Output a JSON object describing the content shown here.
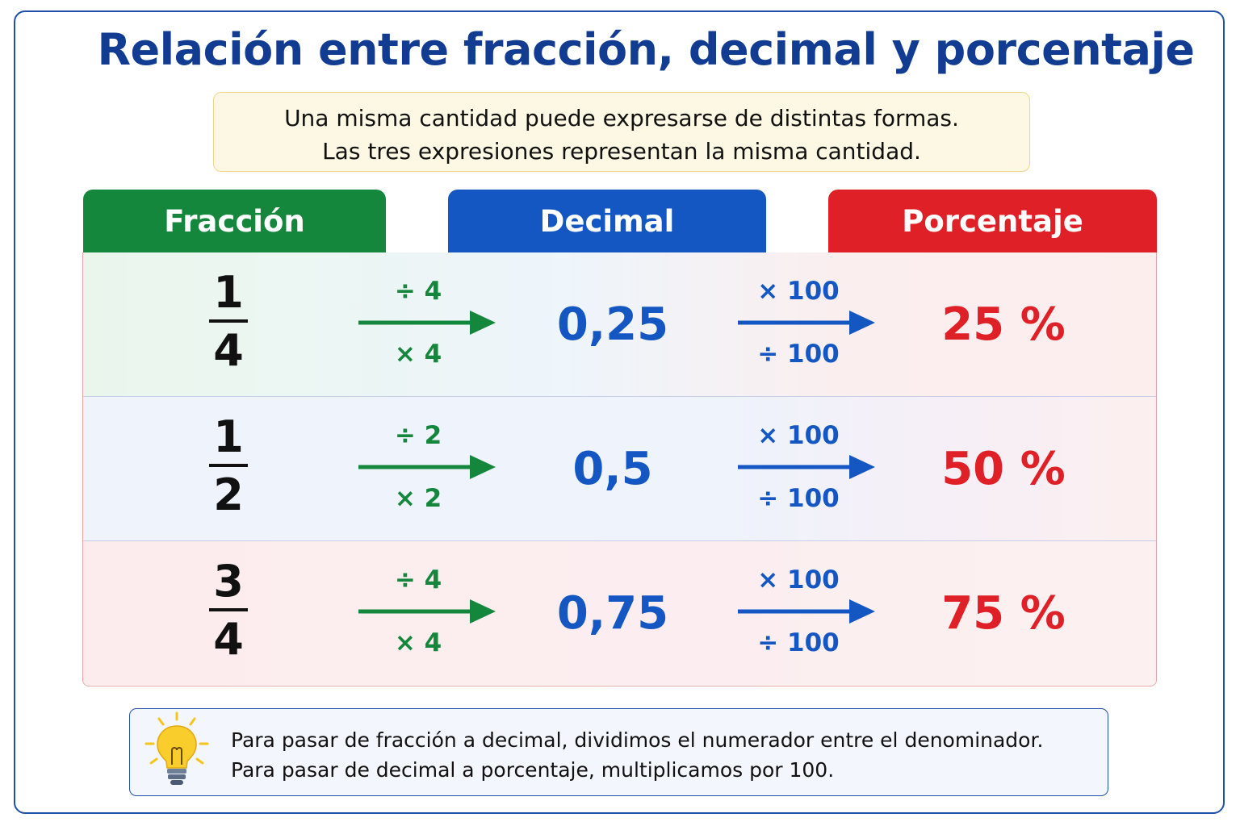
{
  "title": "Relación entre fracción, decimal y porcentaje",
  "intro": {
    "line1": "Una misma cantidad puede expresarse de distintas formas.",
    "line2": "Las tres expresiones representan la misma cantidad."
  },
  "headers": {
    "fraction": "Fracción",
    "decimal": "Decimal",
    "percent": "Porcentaje"
  },
  "rows": [
    {
      "numerator": "1",
      "denominator": "4",
      "op1_top": "÷ 4",
      "op1_bottom": "× 4",
      "decimal": "0,25",
      "op2_top": "× 100",
      "op2_bottom": "÷ 100",
      "percent": "25 %"
    },
    {
      "numerator": "1",
      "denominator": "2",
      "op1_top": "÷ 2",
      "op1_bottom": "× 2",
      "decimal": "0,5",
      "op2_top": "× 100",
      "op2_bottom": "÷ 100",
      "percent": "50 %"
    },
    {
      "numerator": "3",
      "denominator": "4",
      "op1_top": "÷ 4",
      "op1_bottom": "× 4",
      "decimal": "0,75",
      "op2_top": "× 100",
      "op2_bottom": "÷ 100",
      "percent": "75 %"
    }
  ],
  "tip": {
    "icon": "lightbulb-icon",
    "line1": "Para pasar de fracción a decimal, dividimos el numerador entre el denominador.",
    "line2": "Para pasar de decimal a porcentaje, multiplicamos por 100."
  },
  "colors": {
    "title": "#123c91",
    "fraction": "#15873d",
    "decimal": "#1457c2",
    "percent": "#df2027"
  }
}
